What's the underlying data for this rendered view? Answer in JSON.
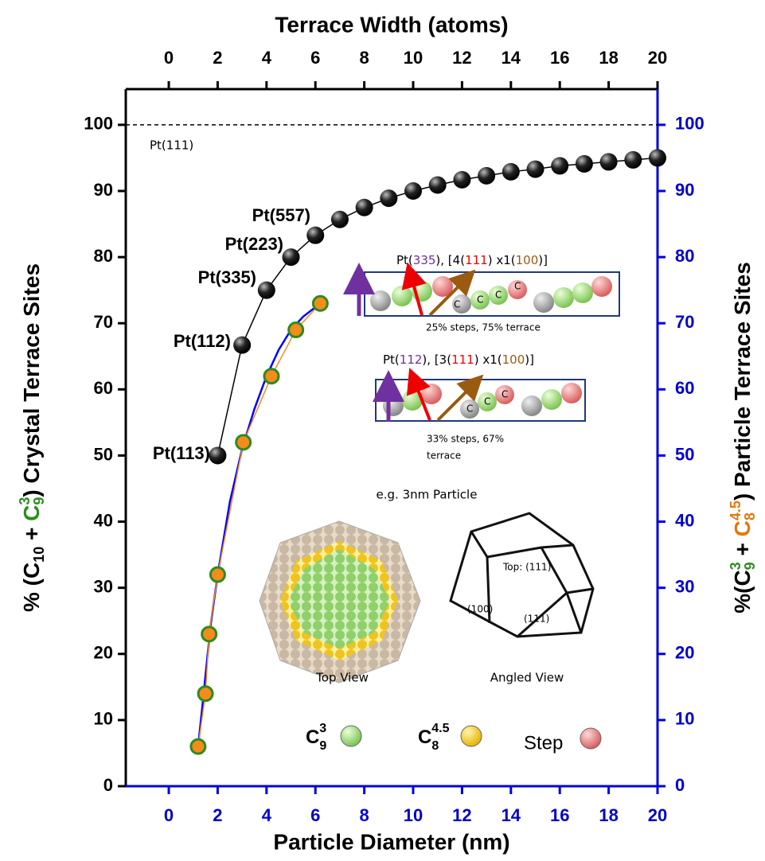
{
  "chart_data": {
    "type": "line",
    "x_title": "Particle Diameter (nm)",
    "x2_title": "Terrace Width (atoms)",
    "y_title": [
      "% (C",
      "10",
      " + ",
      "C",
      "9",
      "3",
      ") Crystal Terrace Sites"
    ],
    "y2_title": [
      "%(C",
      "9",
      "3",
      " + ",
      "C",
      "8",
      "4.5",
      ") Particle Terrace Sites"
    ],
    "xlim": [
      -1.76,
      20
    ],
    "xticks": [
      0,
      2,
      4,
      6,
      8,
      10,
      12,
      14,
      16,
      18,
      20
    ],
    "x2lim": [
      -1.76,
      20
    ],
    "x2ticks": [
      0,
      2,
      4,
      6,
      8,
      10,
      12,
      14,
      16,
      18,
      20
    ],
    "ylim": [
      0,
      105.4
    ],
    "yticks": [
      0,
      10,
      20,
      30,
      40,
      50,
      60,
      70,
      80,
      90,
      100
    ],
    "y2lim": [
      0,
      105.4
    ],
    "y2ticks": [
      0,
      10,
      20,
      30,
      40,
      50,
      60,
      70,
      80,
      90,
      100
    ],
    "series": [
      {
        "color": "#000000",
        "xaxis": "x2",
        "x": [
          2,
          3,
          4,
          5,
          6,
          7,
          8,
          9,
          10,
          11,
          12,
          13,
          14,
          15,
          16,
          17,
          18,
          19,
          20
        ],
        "values": [
          50,
          66.7,
          75,
          80,
          83.3,
          85.7,
          87.5,
          88.9,
          90,
          90.9,
          91.7,
          92.3,
          92.9,
          93.3,
          93.8,
          94.1,
          94.4,
          94.7,
          95
        ]
      },
      {
        "color": "#f28c1c",
        "axis": "y2",
        "x": [
          1.2,
          1.5,
          1.65,
          2,
          3.05,
          4.2,
          5.2,
          6.2
        ],
        "values": [
          6,
          14,
          23,
          32,
          52,
          62,
          69,
          73
        ]
      },
      {
        "color": "#0000ff",
        "axis": "y2",
        "x": [
          1.2,
          1.4,
          1.7,
          2,
          2.5,
          3,
          3.5,
          4,
          4.5,
          5,
          5.5,
          6.2
        ],
        "values": [
          6,
          13,
          24,
          32,
          43,
          51,
          57,
          62,
          66,
          69,
          71,
          73
        ]
      }
    ],
    "reference_line": {
      "value": 100,
      "label": "Pt(111)"
    },
    "annotations": [
      "Pt(113)",
      "Pt(112)",
      "Pt(335)",
      "Pt(223)",
      "Pt(557)"
    ],
    "inset_1": {
      "title": [
        "Pt(",
        "335",
        "), [4(",
        "111",
        ") x1(",
        "100",
        ")]"
      ],
      "caption": "25% steps, 75% terrace",
      "atom_labels": [
        "C",
        "C",
        "C",
        "C"
      ]
    },
    "inset_2": {
      "title": [
        "Pt(",
        "112",
        "), [3(",
        "111",
        ") x1(",
        "100",
        ")]"
      ],
      "caption": [
        "33% steps, 67%",
        "terrace"
      ],
      "atom_labels": [
        "C",
        "C",
        "C"
      ]
    },
    "particle": {
      "title": "e.g. 3nm Particle",
      "views": [
        "Top View",
        "Angled View"
      ],
      "faces": [
        "Top: (111)",
        "(100)",
        "(111)"
      ]
    },
    "legend": [
      [
        "C",
        "9",
        "3"
      ],
      [
        "C",
        "8",
        "4.5"
      ],
      "Step"
    ]
  }
}
